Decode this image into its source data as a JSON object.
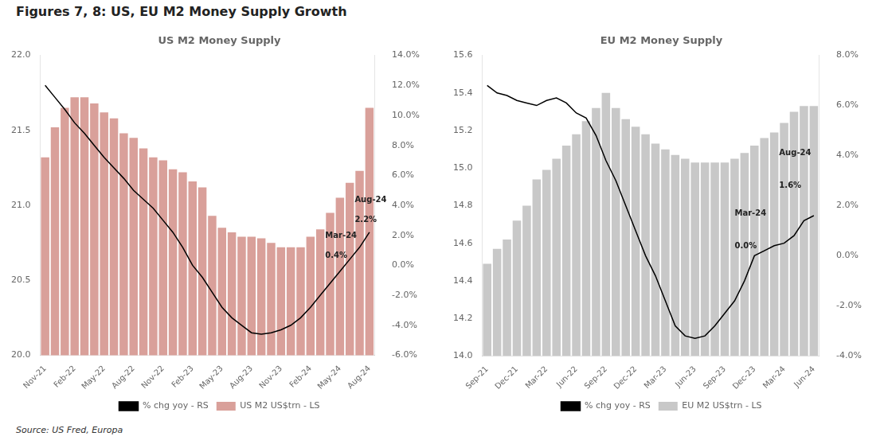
{
  "title": "Figures 7, 8: US, EU M2 Money Supply Growth",
  "source": "Source: US Fred, Europa",
  "chart_data": [
    {
      "type": "bar",
      "title": "US M2 Money Supply",
      "categories": [
        "Nov-21",
        null,
        null,
        "Feb-22",
        null,
        null,
        "May-22",
        null,
        null,
        "Aug-22",
        null,
        null,
        "Nov-22",
        null,
        null,
        "Feb-23",
        null,
        null,
        "May-23",
        null,
        null,
        "Aug-23",
        null,
        null,
        "Nov-23",
        null,
        null,
        "Feb-24",
        null,
        null,
        "May-24",
        null,
        null,
        "Aug-24"
      ],
      "series": [
        {
          "name": "US M2 US$trn - LS",
          "type": "bar",
          "color": "#d9a09a",
          "values": [
            21.32,
            21.52,
            21.65,
            21.72,
            21.72,
            21.68,
            21.62,
            21.58,
            21.48,
            21.45,
            21.38,
            21.32,
            21.3,
            21.24,
            21.22,
            21.16,
            21.12,
            20.93,
            20.85,
            20.82,
            20.79,
            20.79,
            20.78,
            20.75,
            20.72,
            20.72,
            20.72,
            20.79,
            20.84,
            20.95,
            21.05,
            21.15,
            21.23,
            21.65
          ]
        },
        {
          "name": "% chg yoy - RS",
          "type": "line",
          "color": "#000000",
          "axis": "y2",
          "values": [
            12.0,
            11.2,
            10.4,
            9.5,
            8.8,
            8.0,
            7.2,
            6.5,
            5.8,
            5.0,
            4.4,
            3.8,
            3.0,
            2.2,
            1.2,
            0.0,
            -0.8,
            -1.8,
            -2.8,
            -3.5,
            -4.0,
            -4.5,
            -4.6,
            -4.5,
            -4.3,
            -4.0,
            -3.5,
            -2.8,
            -2.0,
            -1.2,
            -0.4,
            0.4,
            1.2,
            2.2
          ]
        }
      ],
      "ylim": [
        20.0,
        22.0
      ],
      "yticks": [
        {
          "value": 20.0,
          "label": "20.0"
        },
        20.5,
        {
          "value": 21.0,
          "label": "21.0"
        },
        21.5,
        {
          "value": 22.0,
          "label": "22.0"
        }
      ],
      "y2lim": [
        -6.0,
        14.0
      ],
      "y2ticks": [
        {
          "value": -6.0,
          "label": "-6.0%"
        },
        {
          "value": -4.0,
          "label": "-4.0%"
        },
        {
          "value": -2.0,
          "label": "-2.0%"
        },
        {
          "value": 0.0,
          "label": "0.0%"
        },
        {
          "value": 2.0,
          "label": "2.0%"
        },
        {
          "value": 4.0,
          "label": "4.0%"
        },
        {
          "value": 6.0,
          "label": "6.0%"
        },
        {
          "value": 8.0,
          "label": "8.0%"
        },
        {
          "value": 10.0,
          "label": "10.0%"
        },
        {
          "value": 12.0,
          "label": "12.0%"
        },
        {
          "value": 14.0,
          "label": "14.0%"
        }
      ],
      "grid": false,
      "legend": "bottom",
      "annotations": [
        {
          "text": "Mar-24",
          "x": 28.5,
          "y": 1.8,
          "axis": "y2"
        },
        {
          "text": "0.4%",
          "x": 28.5,
          "y": 0.5,
          "axis": "y2"
        },
        {
          "text": "Aug-24",
          "x": 31.5,
          "y": 4.2,
          "axis": "y2"
        },
        {
          "text": "2.2%",
          "x": 31.5,
          "y": 2.9,
          "axis": "y2"
        }
      ]
    },
    {
      "type": "bar",
      "title": "EU M2 Money Supply",
      "categories": [
        "Sep-21",
        null,
        null,
        "Dec-21",
        null,
        null,
        "Mar-22",
        null,
        null,
        "Jun-22",
        null,
        null,
        "Sep-22",
        null,
        null,
        "Dec-22",
        null,
        null,
        "Mar-23",
        null,
        null,
        "Jun-23",
        null,
        null,
        "Sep-23",
        null,
        null,
        "Dec-23",
        null,
        null,
        "Mar-24",
        null,
        null,
        "Jun-24"
      ],
      "series": [
        {
          "name": "EU M2 US$trn - LS",
          "type": "bar",
          "color": "#c8c8c8",
          "values": [
            14.49,
            14.57,
            14.62,
            14.72,
            14.8,
            14.94,
            14.99,
            15.05,
            15.12,
            15.18,
            15.25,
            15.32,
            15.4,
            15.32,
            15.26,
            15.22,
            15.18,
            15.13,
            15.1,
            15.07,
            15.05,
            15.03,
            15.03,
            15.03,
            15.03,
            15.05,
            15.08,
            15.12,
            15.16,
            15.19,
            15.24,
            15.3,
            15.33,
            15.33
          ]
        },
        {
          "name": "% chg yoy - RS",
          "type": "line",
          "color": "#000000",
          "axis": "y2",
          "values": [
            6.8,
            6.5,
            6.4,
            6.2,
            6.1,
            6.0,
            6.2,
            6.3,
            6.1,
            5.7,
            5.5,
            4.8,
            3.8,
            3.0,
            2.0,
            1.0,
            0.0,
            -0.8,
            -1.8,
            -2.8,
            -3.2,
            -3.3,
            -3.2,
            -2.8,
            -2.3,
            -1.8,
            -1.0,
            0.0,
            0.2,
            0.4,
            0.5,
            0.8,
            1.4,
            1.6
          ]
        }
      ],
      "ylim": [
        14.0,
        15.6
      ],
      "yticks": [
        {
          "value": 14.0,
          "label": "14.0"
        },
        14.2,
        14.4,
        14.6,
        14.8,
        {
          "value": 15.0,
          "label": "15.0"
        },
        15.2,
        15.4,
        15.6
      ],
      "y2lim": [
        -4.0,
        8.0
      ],
      "y2ticks": [
        {
          "value": -4.0,
          "label": "-4.0%"
        },
        {
          "value": -2.0,
          "label": "-2.0%"
        },
        {
          "value": 0.0,
          "label": "0.0%"
        },
        {
          "value": 2.0,
          "label": "2.0%"
        },
        {
          "value": 4.0,
          "label": "4.0%"
        },
        {
          "value": 6.0,
          "label": "6.0%"
        },
        {
          "value": 8.0,
          "label": "8.0%"
        }
      ],
      "grid": false,
      "legend": "bottom",
      "annotations": [
        {
          "text": "Mar-24",
          "x": 25.0,
          "y": 1.6,
          "axis": "y2"
        },
        {
          "text": "0.0%",
          "x": 25.0,
          "y": 0.3,
          "axis": "y2"
        },
        {
          "text": "Aug-24",
          "x": 29.5,
          "y": 4.0,
          "axis": "y2"
        },
        {
          "text": "1.6%",
          "x": 29.5,
          "y": 2.7,
          "axis": "y2"
        }
      ]
    }
  ]
}
